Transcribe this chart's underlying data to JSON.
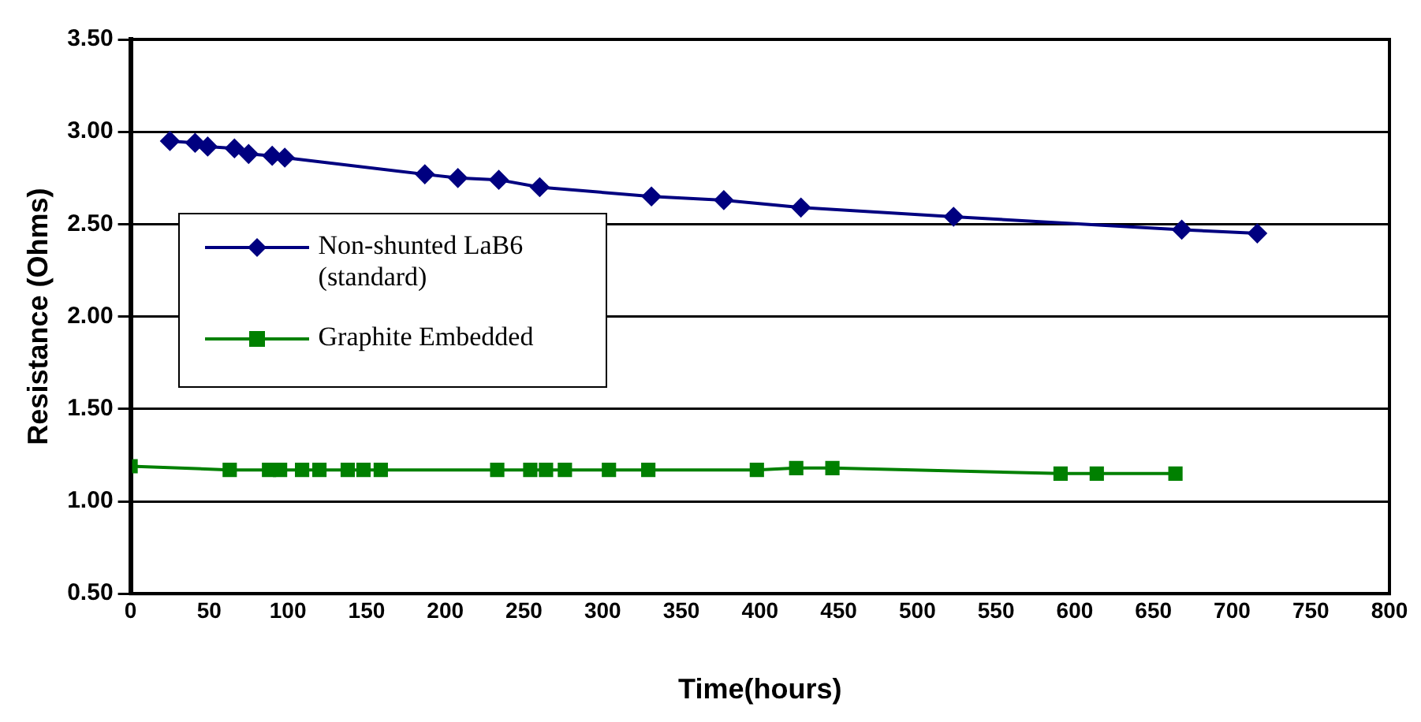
{
  "chart_data": {
    "type": "line",
    "xlabel": "Time(hours)",
    "ylabel": "Resistance (Ohms)",
    "xlim": [
      0,
      800
    ],
    "xticks": [
      0,
      50,
      100,
      150,
      200,
      250,
      300,
      350,
      400,
      450,
      500,
      550,
      600,
      650,
      700,
      750,
      800
    ],
    "ylim": [
      0.5,
      3.5
    ],
    "yticks": [
      {
        "value": 0.5,
        "label": "0.50"
      },
      {
        "value": 1,
        "label": "1.00"
      },
      {
        "value": 1.5,
        "label": "1.50"
      },
      {
        "value": 2,
        "label": "2.00"
      },
      {
        "value": 2.5,
        "label": "2.50"
      },
      {
        "value": 3,
        "label": "3.00"
      },
      {
        "value": 3.5,
        "label": "3.50"
      }
    ],
    "grid": "y",
    "legend": "left",
    "line_style": "solid",
    "series": [
      {
        "name": "Non-shunted LaB6 (standard)",
        "color": "#000080",
        "marker": "diamond",
        "x": [
          25,
          41,
          49,
          66,
          75,
          90,
          98,
          187,
          208,
          234,
          260,
          331,
          377,
          426,
          523,
          668,
          716
        ],
        "values": [
          2.95,
          2.94,
          2.92,
          2.91,
          2.88,
          2.87,
          2.86,
          2.77,
          2.75,
          2.74,
          2.7,
          2.65,
          2.63,
          2.59,
          2.54,
          2.47,
          2.45
        ]
      },
      {
        "name": "Graphite Embedded",
        "color": "#008000",
        "marker": "square",
        "x": [
          0,
          63,
          88,
          95,
          109,
          120,
          138,
          148,
          159,
          233,
          254,
          264,
          276,
          304,
          329,
          398,
          423,
          446,
          591,
          614,
          664
        ],
        "values": [
          1.19,
          1.17,
          1.17,
          1.17,
          1.17,
          1.17,
          1.17,
          1.17,
          1.17,
          1.17,
          1.17,
          1.17,
          1.17,
          1.17,
          1.17,
          1.17,
          1.18,
          1.18,
          1.15,
          1.15,
          1.15
        ]
      }
    ]
  }
}
